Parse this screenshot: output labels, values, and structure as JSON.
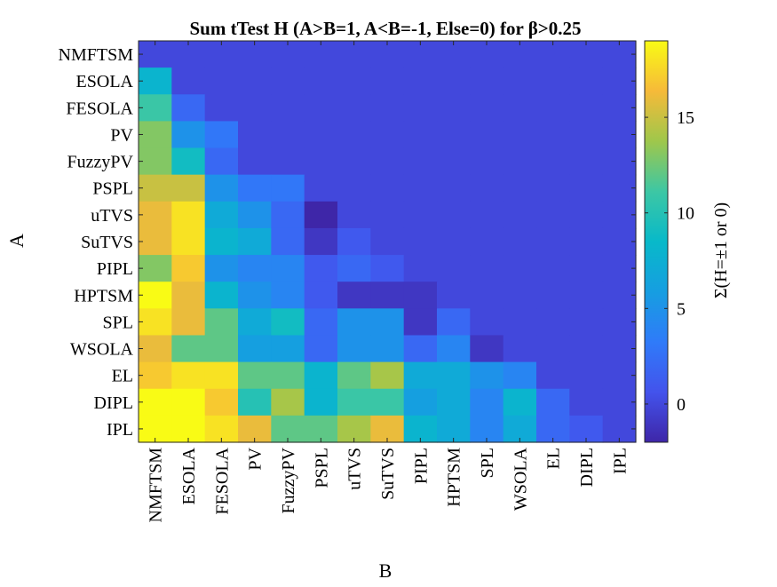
{
  "chart_data": {
    "type": "heatmap",
    "title": "Sum tTest H (A>B=1, A<B=-1, Else=0) for β>0.25",
    "xlabel": "B",
    "ylabel": "A",
    "colorbar_label": "Σ(H=±1 or 0)",
    "rows": [
      "NMFTSM",
      "ESOLA",
      "FESOLA",
      "PV",
      "FuzzyPV",
      "PSPL",
      "uTVS",
      "SuTVS",
      "PIPL",
      "HPTSM",
      "SPL",
      "WSOLA",
      "EL",
      "DIPL",
      "IPL"
    ],
    "cols": [
      "NMFTSM",
      "ESOLA",
      "FESOLA",
      "PV",
      "FuzzyPV",
      "PSPL",
      "uTVS",
      "SuTVS",
      "PIPL",
      "HPTSM",
      "SPL",
      "WSOLA",
      "EL",
      "DIPL",
      "IPL"
    ],
    "values": [
      [
        0,
        0,
        0,
        0,
        0,
        0,
        0,
        0,
        0,
        0,
        0,
        0,
        0,
        0,
        0
      ],
      [
        8,
        0,
        0,
        0,
        0,
        0,
        0,
        0,
        0,
        0,
        0,
        0,
        0,
        0,
        0
      ],
      [
        11,
        2,
        0,
        0,
        0,
        0,
        0,
        0,
        0,
        0,
        0,
        0,
        0,
        0,
        0
      ],
      [
        13,
        5,
        3,
        0,
        0,
        0,
        0,
        0,
        0,
        0,
        0,
        0,
        0,
        0,
        0
      ],
      [
        13,
        9,
        2,
        0,
        0,
        0,
        0,
        0,
        0,
        0,
        0,
        0,
        0,
        0,
        0
      ],
      [
        15,
        15,
        5,
        3,
        3,
        0,
        0,
        0,
        0,
        0,
        0,
        0,
        0,
        0,
        0
      ],
      [
        16,
        18,
        7,
        5,
        2,
        -2,
        0,
        0,
        0,
        0,
        0,
        0,
        0,
        0,
        0
      ],
      [
        16,
        18,
        8,
        7,
        2,
        -1,
        1,
        0,
        0,
        0,
        0,
        0,
        0,
        0,
        0
      ],
      [
        13,
        17,
        5,
        4,
        4,
        1,
        2,
        1,
        0,
        0,
        0,
        0,
        0,
        0,
        0
      ],
      [
        19,
        16,
        8,
        5,
        4,
        1,
        -1,
        -1,
        -1,
        0,
        0,
        0,
        0,
        0,
        0
      ],
      [
        18,
        16,
        12,
        7,
        9,
        2,
        5,
        5,
        -1,
        2,
        0,
        0,
        0,
        0,
        0
      ],
      [
        16,
        12,
        12,
        6,
        6,
        2,
        5,
        5,
        2,
        4,
        -1,
        0,
        0,
        0,
        0
      ],
      [
        17,
        18,
        18,
        12,
        12,
        8,
        12,
        14,
        7,
        7,
        5,
        4,
        0,
        0,
        0
      ],
      [
        19,
        19,
        17,
        10,
        14,
        8,
        11,
        11,
        6,
        7,
        4,
        8,
        2,
        0,
        0
      ],
      [
        19,
        19,
        18,
        16,
        12,
        12,
        14,
        16,
        8,
        7,
        4,
        7,
        2,
        1,
        0
      ]
    ],
    "clim": [
      -2,
      19
    ],
    "colorbar_ticks": [
      0,
      5,
      10,
      15
    ],
    "colormap": "parula"
  }
}
